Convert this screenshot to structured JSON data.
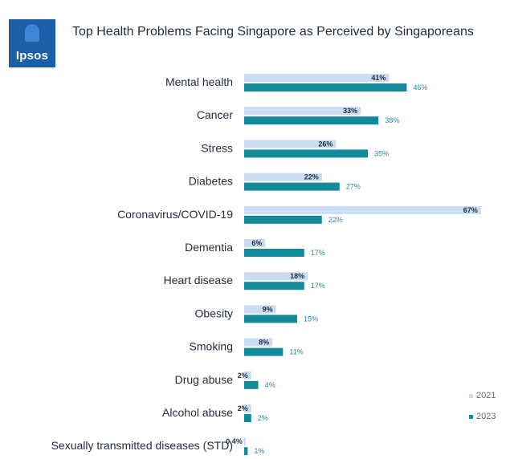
{
  "logo": {
    "text": "Ipsos"
  },
  "chart_data": {
    "type": "bar",
    "orientation": "horizontal",
    "title": "Top Health Problems Facing Singapore as Perceived by Singaporeans",
    "categories": [
      "Mental health",
      "Cancer",
      "Stress",
      "Diabetes",
      "Coronavirus/COVID-19",
      "Dementia",
      "Heart disease",
      "Obesity",
      "Smoking",
      "Drug abuse",
      "Alcohol abuse",
      "Sexually transmitted diseases (STD)"
    ],
    "series": [
      {
        "name": "2021",
        "color": "#c9dcf1",
        "values": [
          41,
          33,
          26,
          22,
          67,
          6,
          18,
          9,
          8,
          2,
          2,
          0.4
        ],
        "labels": [
          "41%",
          "33%",
          "26%",
          "22%",
          "67%",
          "6%",
          "18%",
          "9%",
          "8%",
          "2%",
          "2%",
          "0.4%"
        ]
      },
      {
        "name": "2023",
        "color": "#138a9c",
        "values": [
          46,
          38,
          35,
          27,
          22,
          17,
          17,
          15,
          11,
          4,
          2,
          1
        ],
        "labels": [
          "46%",
          "38%",
          "35%",
          "27%",
          "22%",
          "17%",
          "17%",
          "15%",
          "11%",
          "4%",
          "2%",
          "1%"
        ]
      }
    ],
    "legend": "bottom-right",
    "grid": false
  }
}
